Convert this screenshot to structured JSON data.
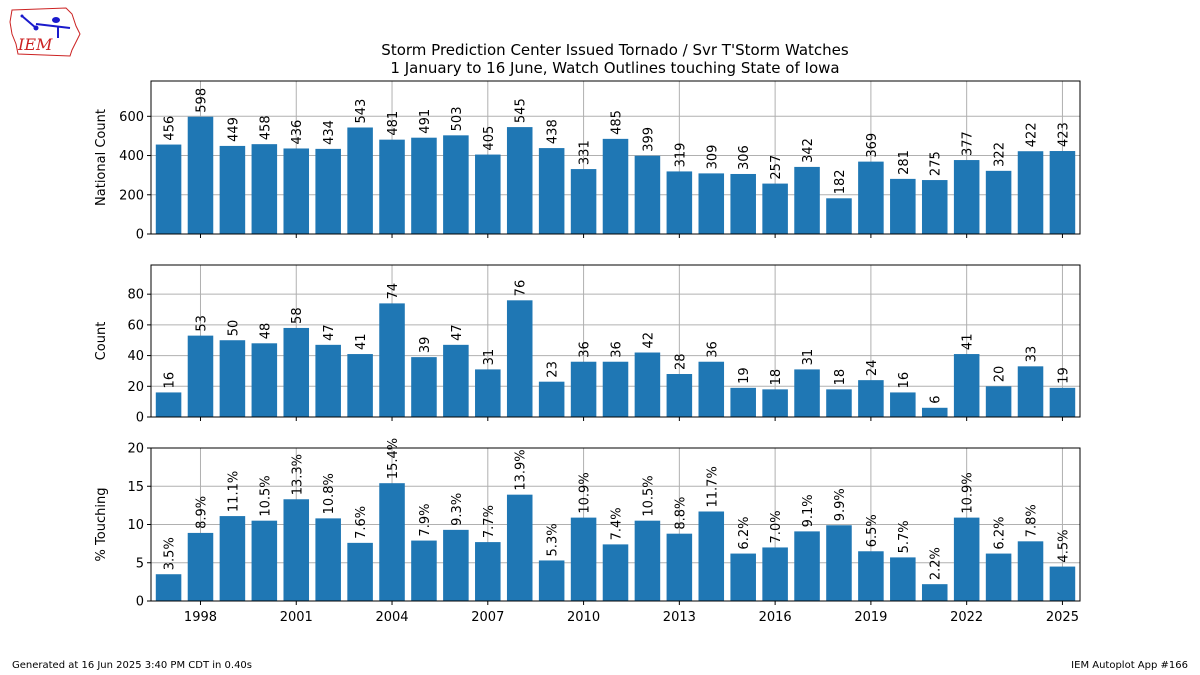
{
  "header": {
    "title": "Storm Prediction Center Issued Tornado / Svr T'Storm Watches",
    "subtitle": "1 January to 16 June, Watch Outlines touching State of Iowa",
    "logo_text": "IEM"
  },
  "footer": {
    "left": "Generated at 16 Jun 2025 3:40 PM CDT in 0.40s",
    "right": "IEM Autoplot App #166"
  },
  "colors": {
    "bar": "#1f77b4",
    "grid": "#b0b0b0",
    "logo_red": "#cc2222",
    "logo_blue": "#1a1acc"
  },
  "chart_data": [
    {
      "type": "bar",
      "ylabel": "National Count",
      "ylim": [
        0,
        780
      ],
      "yticks": [
        0,
        200,
        400,
        600
      ],
      "grid": true,
      "x": [
        1997,
        1998,
        1999,
        2000,
        2001,
        2002,
        2003,
        2004,
        2005,
        2006,
        2007,
        2008,
        2009,
        2010,
        2011,
        2012,
        2013,
        2014,
        2015,
        2016,
        2017,
        2018,
        2019,
        2020,
        2021,
        2022,
        2023,
        2024,
        2025
      ],
      "values": [
        456,
        598,
        449,
        458,
        436,
        434,
        543,
        481,
        491,
        503,
        405,
        545,
        438,
        331,
        485,
        399,
        319,
        309,
        306,
        257,
        342,
        182,
        369,
        281,
        275,
        377,
        322,
        422,
        423
      ],
      "labels": [
        "456",
        "598",
        "449",
        "458",
        "436",
        "434",
        "543",
        "481",
        "491",
        "503",
        "405",
        "545",
        "438",
        "331",
        "485",
        "399",
        "319",
        "309",
        "306",
        "257",
        "342",
        "182",
        "369",
        "281",
        "275",
        "377",
        "322",
        "422",
        "423"
      ]
    },
    {
      "type": "bar",
      "ylabel": "Count",
      "ylim": [
        0,
        99
      ],
      "yticks": [
        0,
        20,
        40,
        60,
        80
      ],
      "grid": true,
      "x": [
        1997,
        1998,
        1999,
        2000,
        2001,
        2002,
        2003,
        2004,
        2005,
        2006,
        2007,
        2008,
        2009,
        2010,
        2011,
        2012,
        2013,
        2014,
        2015,
        2016,
        2017,
        2018,
        2019,
        2020,
        2021,
        2022,
        2023,
        2024,
        2025
      ],
      "values": [
        16,
        53,
        50,
        48,
        58,
        47,
        41,
        74,
        39,
        47,
        31,
        76,
        23,
        36,
        36,
        42,
        28,
        36,
        19,
        18,
        31,
        18,
        24,
        16,
        6,
        41,
        20,
        33,
        19
      ],
      "labels": [
        "16",
        "53",
        "50",
        "48",
        "58",
        "47",
        "41",
        "74",
        "39",
        "47",
        "31",
        "76",
        "23",
        "36",
        "36",
        "42",
        "28",
        "36",
        "19",
        "18",
        "31",
        "18",
        "24",
        "16",
        "6",
        "41",
        "20",
        "33",
        "19"
      ]
    },
    {
      "type": "bar",
      "ylabel": "% Touching",
      "ylim": [
        0,
        20
      ],
      "yticks": [
        0,
        5,
        10,
        15,
        20
      ],
      "grid": true,
      "xticks": [
        1998,
        2001,
        2004,
        2007,
        2010,
        2013,
        2016,
        2019,
        2022,
        2025
      ],
      "x": [
        1997,
        1998,
        1999,
        2000,
        2001,
        2002,
        2003,
        2004,
        2005,
        2006,
        2007,
        2008,
        2009,
        2010,
        2011,
        2012,
        2013,
        2014,
        2015,
        2016,
        2017,
        2018,
        2019,
        2020,
        2021,
        2022,
        2023,
        2024,
        2025
      ],
      "values": [
        3.5,
        8.9,
        11.1,
        10.5,
        13.3,
        10.8,
        7.6,
        15.4,
        7.9,
        9.3,
        7.7,
        13.9,
        5.3,
        10.9,
        7.4,
        10.5,
        8.8,
        11.7,
        6.2,
        7.0,
        9.1,
        9.9,
        6.5,
        5.7,
        2.2,
        10.9,
        6.2,
        7.8,
        4.5
      ],
      "labels": [
        "3.5%",
        "8.9%",
        "11.1%",
        "10.5%",
        "13.3%",
        "10.8%",
        "7.6%",
        "15.4%",
        "7.9%",
        "9.3%",
        "7.7%",
        "13.9%",
        "5.3%",
        "10.9%",
        "7.4%",
        "10.5%",
        "8.8%",
        "11.7%",
        "6.2%",
        "7.0%",
        "9.1%",
        "9.9%",
        "6.5%",
        "5.7%",
        "2.2%",
        "10.9%",
        "6.2%",
        "7.8%",
        "4.5%"
      ]
    }
  ]
}
